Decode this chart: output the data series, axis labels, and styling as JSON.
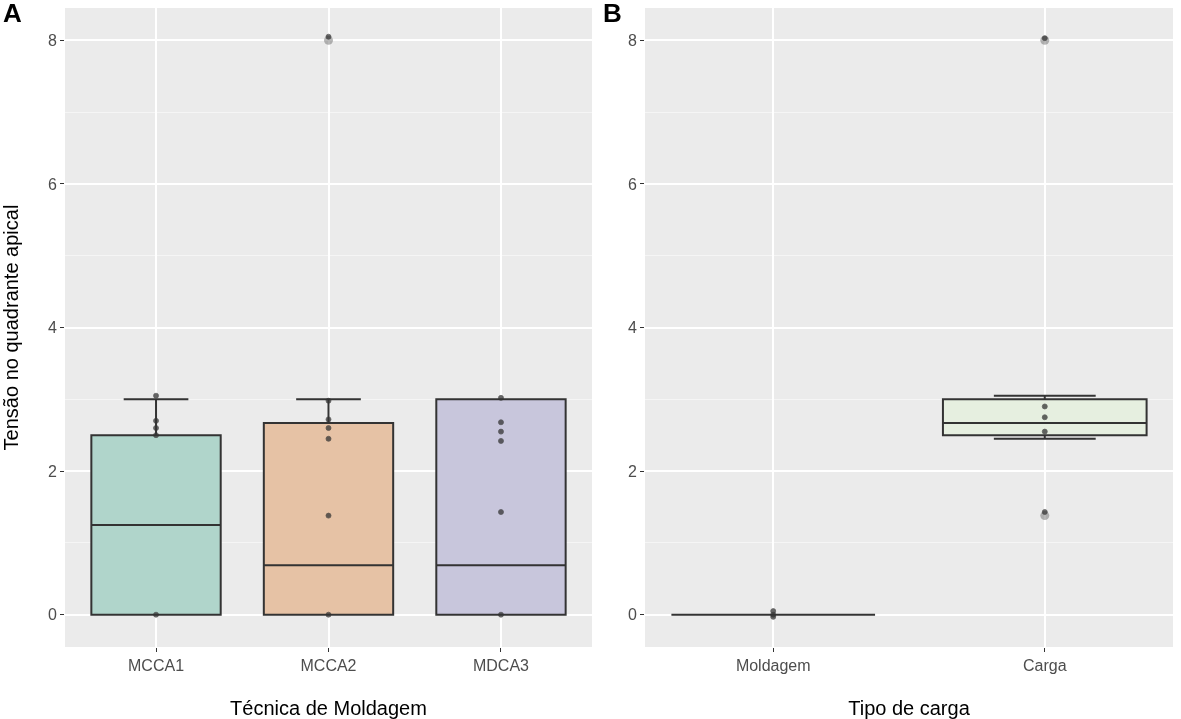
{
  "chart_data": [
    {
      "type": "box",
      "title": "A",
      "categories": [
        "MCCA1",
        "MCCA2",
        "MDCA3"
      ],
      "xlabel": "Técnica de Moldagem",
      "ylabel": "Tensão no quadrante apical",
      "ylim": [
        -0.45,
        8.45
      ],
      "yticks": [
        0,
        2,
        4,
        6,
        8
      ],
      "grid": true,
      "series": [
        {
          "type": "box",
          "colors": [
            "#b0d5cb",
            "#e6c2a5",
            "#c8c6dc"
          ],
          "boxes": [
            {
              "low": 0,
              "q1": 0,
              "median": 1.25,
              "q3": 2.5,
              "high": 3.0
            },
            {
              "low": 0,
              "q1": 0,
              "median": 0.69,
              "q3": 2.67,
              "high": 3.0,
              "outliers": [
                8
              ]
            },
            {
              "low": 0,
              "q1": 0,
              "median": 0.69,
              "q3": 3.0,
              "high": 3.0
            }
          ]
        },
        {
          "type": "scatter",
          "color": "#333333",
          "x": [
            "MCCA1",
            "MCCA1",
            "MCCA1",
            "MCCA1",
            "MCCA1",
            "MCCA2",
            "MCCA2",
            "MCCA2",
            "MCCA2",
            "MCCA2",
            "MCCA2",
            "MCCA2",
            "MDCA3",
            "MDCA3",
            "MDCA3",
            "MDCA3",
            "MDCA3",
            "MDCA3"
          ],
          "values": [
            0,
            2.5,
            2.6,
            2.7,
            3.05,
            0,
            1.38,
            2.45,
            2.6,
            2.72,
            2.98,
            8.05,
            0,
            1.43,
            2.42,
            2.55,
            2.68,
            3.02
          ]
        }
      ]
    },
    {
      "type": "box",
      "title": "B",
      "categories": [
        "Moldagem",
        "Carga"
      ],
      "xlabel": "Tipo de carga",
      "ylim": [
        -0.45,
        8.45
      ],
      "yticks": [
        0,
        2,
        4,
        6,
        8
      ],
      "grid": true,
      "series": [
        {
          "type": "box",
          "colors": [
            "#333333",
            "#e6efe0"
          ],
          "boxes": [
            {
              "low": 0,
              "q1": 0,
              "median": 0,
              "q3": 0,
              "high": 0
            },
            {
              "low": 2.45,
              "q1": 2.5,
              "median": 2.67,
              "q3": 3.0,
              "high": 3.05,
              "outliers": [
                1.38,
                8
              ]
            }
          ]
        },
        {
          "type": "scatter",
          "color": "#333333",
          "x": [
            "Moldagem",
            "Moldagem",
            "Moldagem",
            "Carga",
            "Carga",
            "Carga",
            "Carga",
            "Carga"
          ],
          "values": [
            0,
            0.05,
            -0.03,
            2.55,
            2.75,
            2.9,
            1.43,
            8.03
          ]
        }
      ]
    }
  ]
}
